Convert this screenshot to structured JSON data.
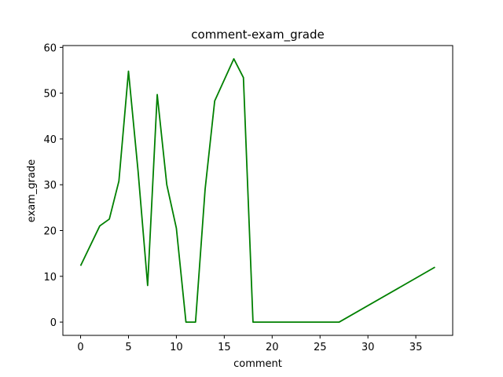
{
  "chart_data": {
    "type": "line",
    "title": "comment-exam_grade",
    "xlabel": "comment",
    "ylabel": "exam_grade",
    "xlim": [
      -1.85,
      38.85
    ],
    "ylim": [
      -2.9,
      60.4
    ],
    "grid": false,
    "line_color": "#008000",
    "x_ticks": [
      0,
      5,
      10,
      15,
      20,
      25,
      30,
      35
    ],
    "y_ticks": [
      0,
      10,
      20,
      30,
      40,
      50,
      60
    ],
    "x_tick_labels": [
      "0",
      "5",
      "10",
      "15",
      "20",
      "25",
      "30",
      "35"
    ],
    "y_tick_labels": [
      "0",
      "10",
      "20",
      "30",
      "40",
      "50",
      "60"
    ],
    "series": [
      {
        "x": [
          0,
          2,
          3,
          4,
          5,
          6,
          7,
          8,
          9,
          10,
          11,
          12,
          13,
          14,
          16,
          17,
          18,
          27,
          37
        ],
        "y": [
          12.3,
          21.0,
          22.5,
          30.8,
          54.8,
          33.0,
          8.0,
          49.7,
          30.0,
          20.5,
          0.0,
          0.0,
          29.0,
          48.3,
          57.5,
          53.4,
          0.0,
          0.0,
          12.0
        ]
      }
    ]
  }
}
